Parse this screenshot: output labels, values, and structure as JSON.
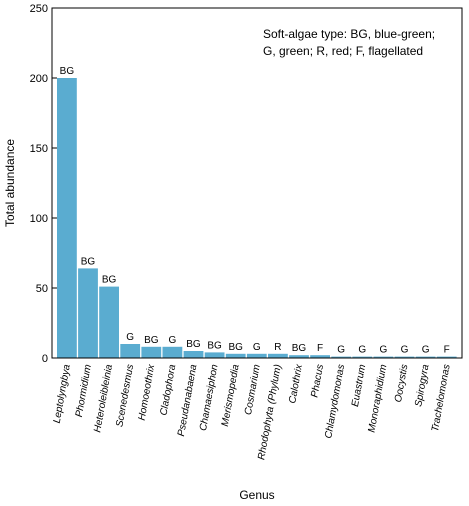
{
  "chart_data": {
    "type": "bar",
    "xlabel": "Genus",
    "ylabel": "Total abundance",
    "ylim": [
      0,
      250
    ],
    "yticks": [
      0,
      50,
      100,
      150,
      200,
      250
    ],
    "bar_color": "#5aacd0",
    "grid": false,
    "annotation": [
      "Soft-algae type: BG, blue-green;",
      "G, green; R, red; F, flagellated"
    ],
    "categories": [
      "Leptolyngbya",
      "Phormidium",
      "Heteroleibleinia",
      "Scenedesmus",
      "Homoeothrix",
      "Cladophora",
      "Pseudanabaena",
      "Chamaesiphon",
      "Merismopedia",
      "Cosmarium",
      "Rhodophyta (Phylum)",
      "Calothrix",
      "Phacus",
      "Chlamydomonas",
      "Euastrum",
      "Monoraphidium",
      "Oocystis",
      "Spirogyra",
      "Trachelomonas"
    ],
    "values": [
      200,
      64,
      51,
      10,
      8,
      8,
      5,
      4,
      3,
      3,
      3,
      2,
      2,
      1,
      1,
      1,
      1,
      1,
      1
    ],
    "types": [
      "BG",
      "BG",
      "BG",
      "G",
      "BG",
      "G",
      "BG",
      "BG",
      "BG",
      "G",
      "R",
      "BG",
      "F",
      "G",
      "G",
      "G",
      "G",
      "G",
      "F"
    ]
  }
}
